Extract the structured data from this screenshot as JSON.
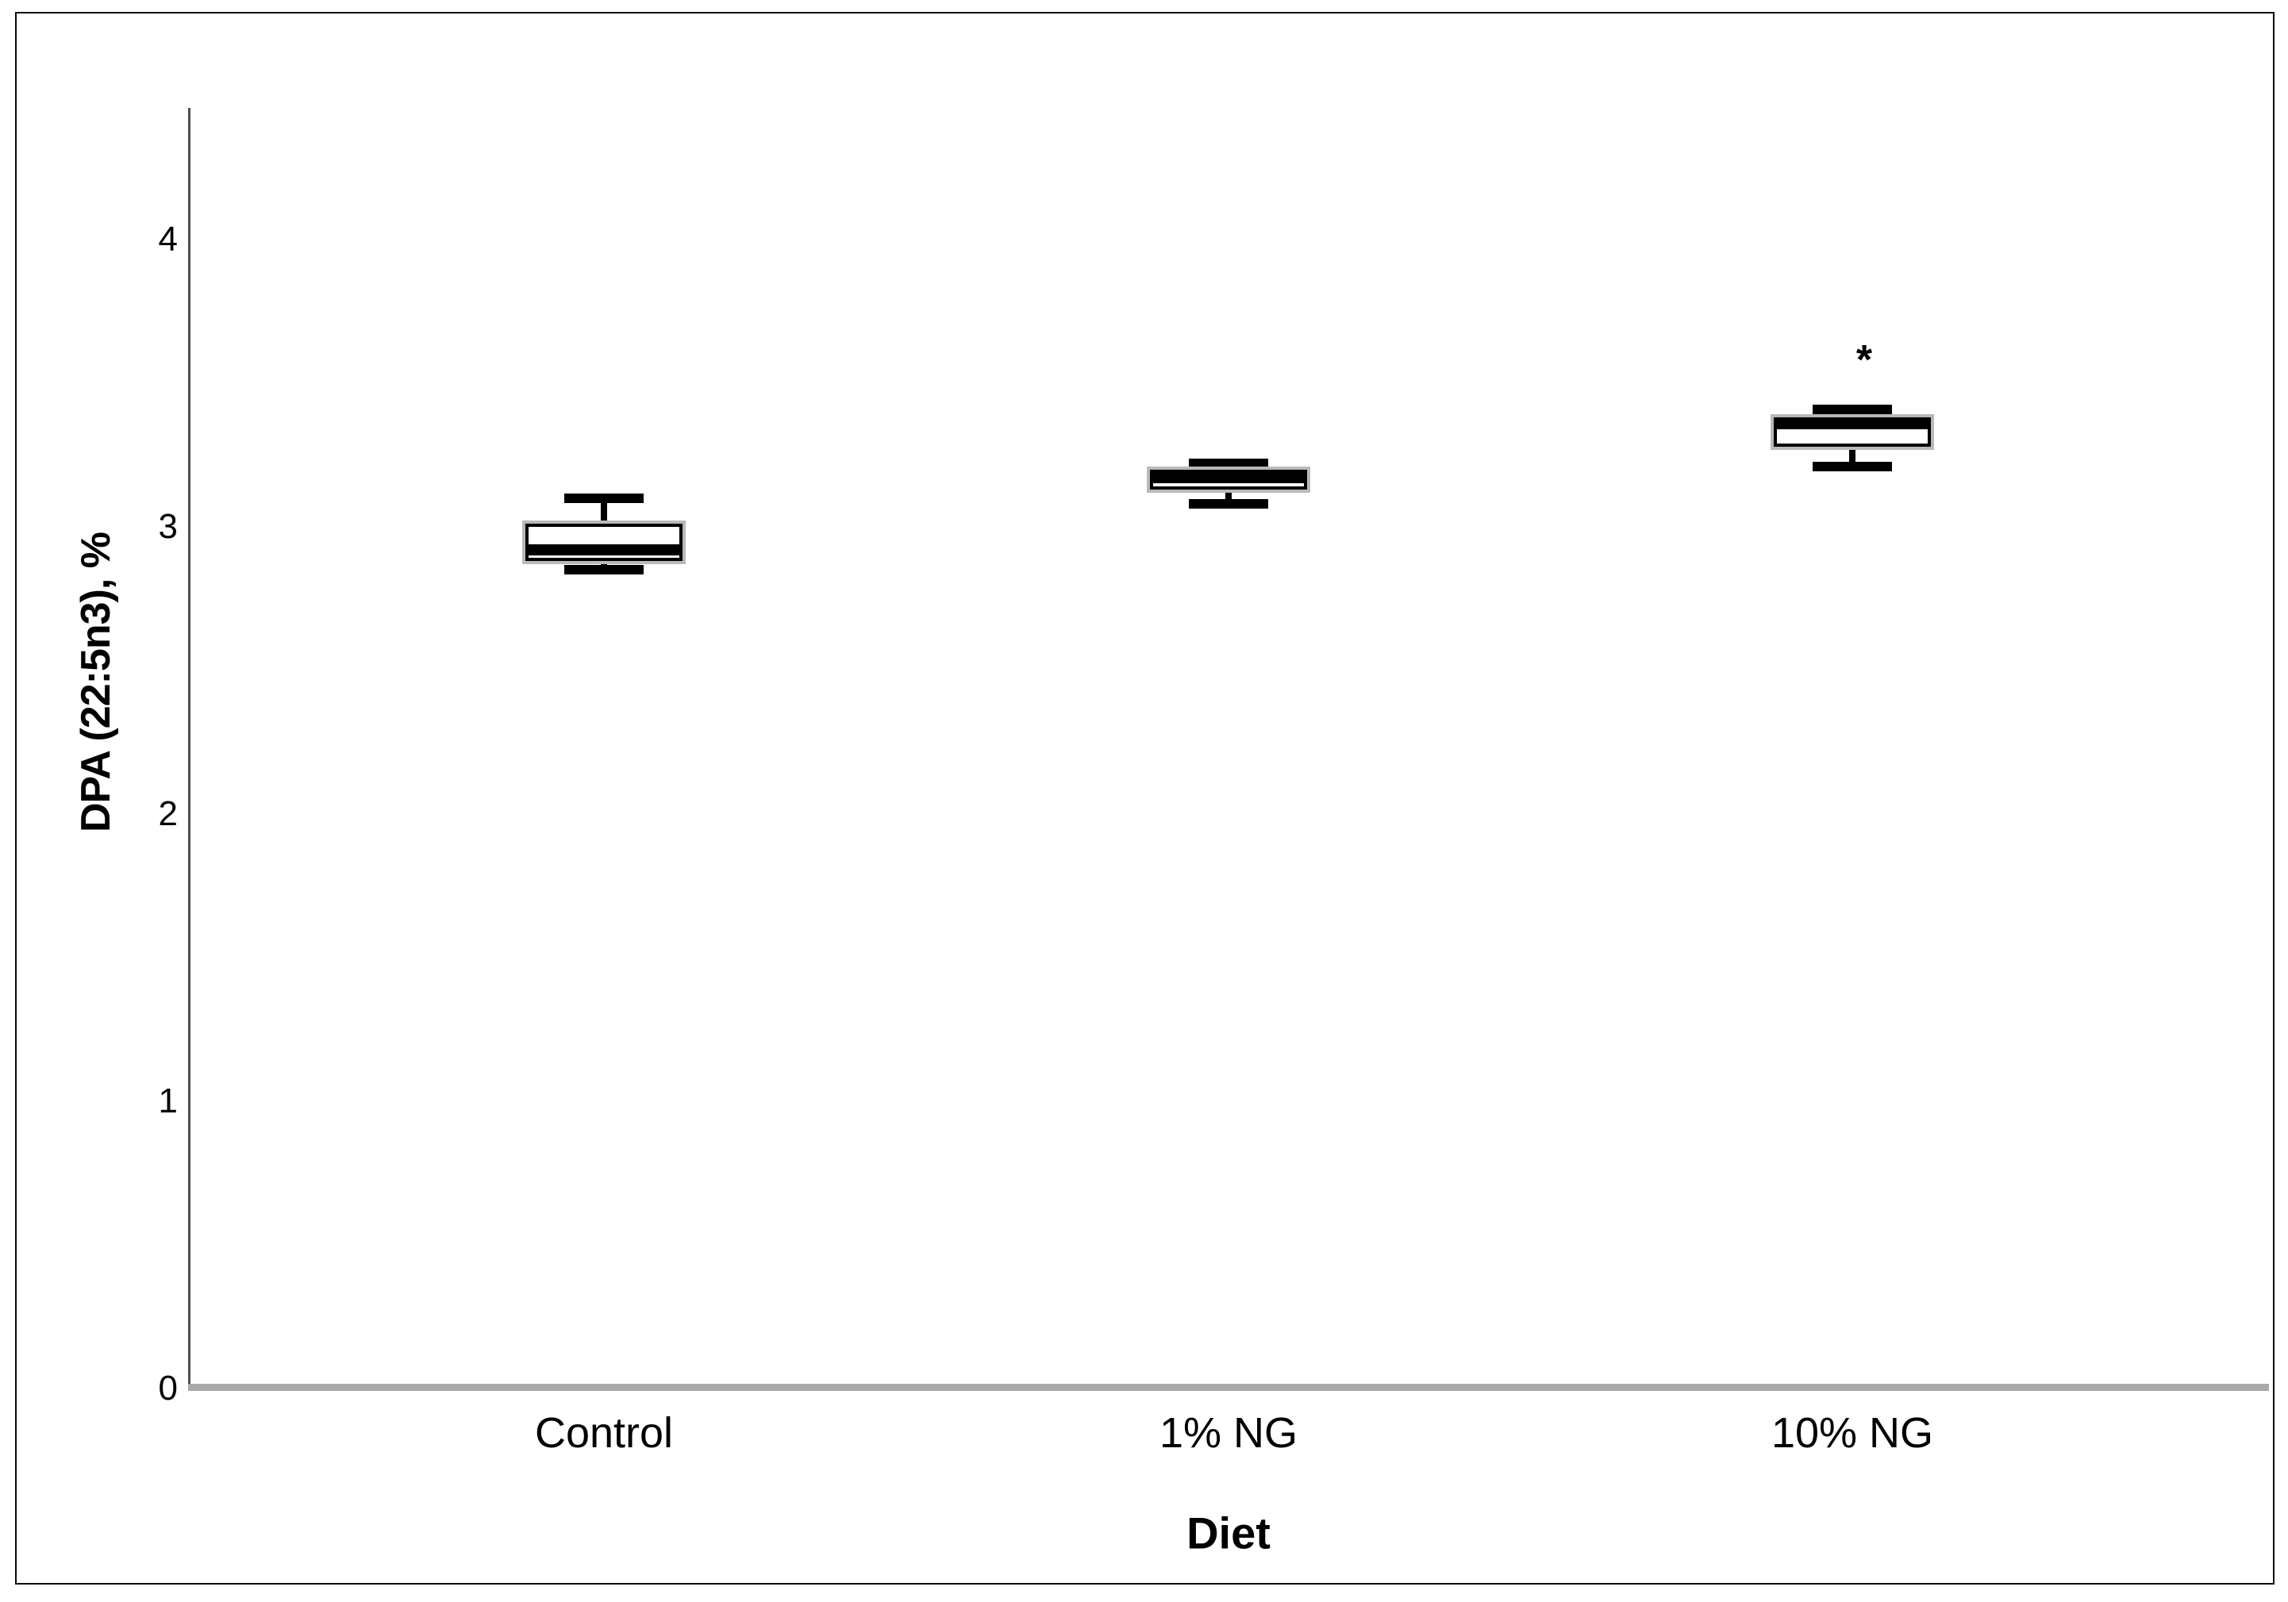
{
  "figure": {
    "background_color": "#ffffff",
    "frame_color": "#0a0a0a"
  },
  "chart_data": {
    "type": "boxplot",
    "title": "",
    "xlabel": "Diet",
    "ylabel": "DPA (22:5n3), %",
    "categories": [
      "Control",
      "1% NG",
      "10% NG"
    ],
    "y_ticks": [
      0,
      1,
      2,
      3,
      4
    ],
    "ylim": [
      0,
      4.46
    ],
    "grid": false,
    "legend": false,
    "orientation": "vertical",
    "series": [
      {
        "category": "Control",
        "whisker_low": 2.85,
        "q1": 2.88,
        "median": 2.92,
        "q3": 3.01,
        "whisker_high": 3.1
      },
      {
        "category": "1% NG",
        "whisker_low": 3.08,
        "q1": 3.13,
        "median": 3.17,
        "q3": 3.2,
        "whisker_high": 3.22
      },
      {
        "category": "10% NG",
        "whisker_low": 3.21,
        "q1": 3.28,
        "median": 3.36,
        "q3": 3.38,
        "whisker_high": 3.41
      }
    ],
    "annotations": [
      {
        "category": "10% NG",
        "text": "*",
        "y": 3.58
      }
    ],
    "colors": {
      "box_fill": "#ffffff",
      "box_border": "#000000",
      "median_line": "#000000",
      "whisker": "#000000",
      "box_shadow": "#b9b9b9",
      "x_axis_line": "#a9a9a9",
      "y_axis_line": "#4d4d4d",
      "text": "#000000"
    }
  }
}
